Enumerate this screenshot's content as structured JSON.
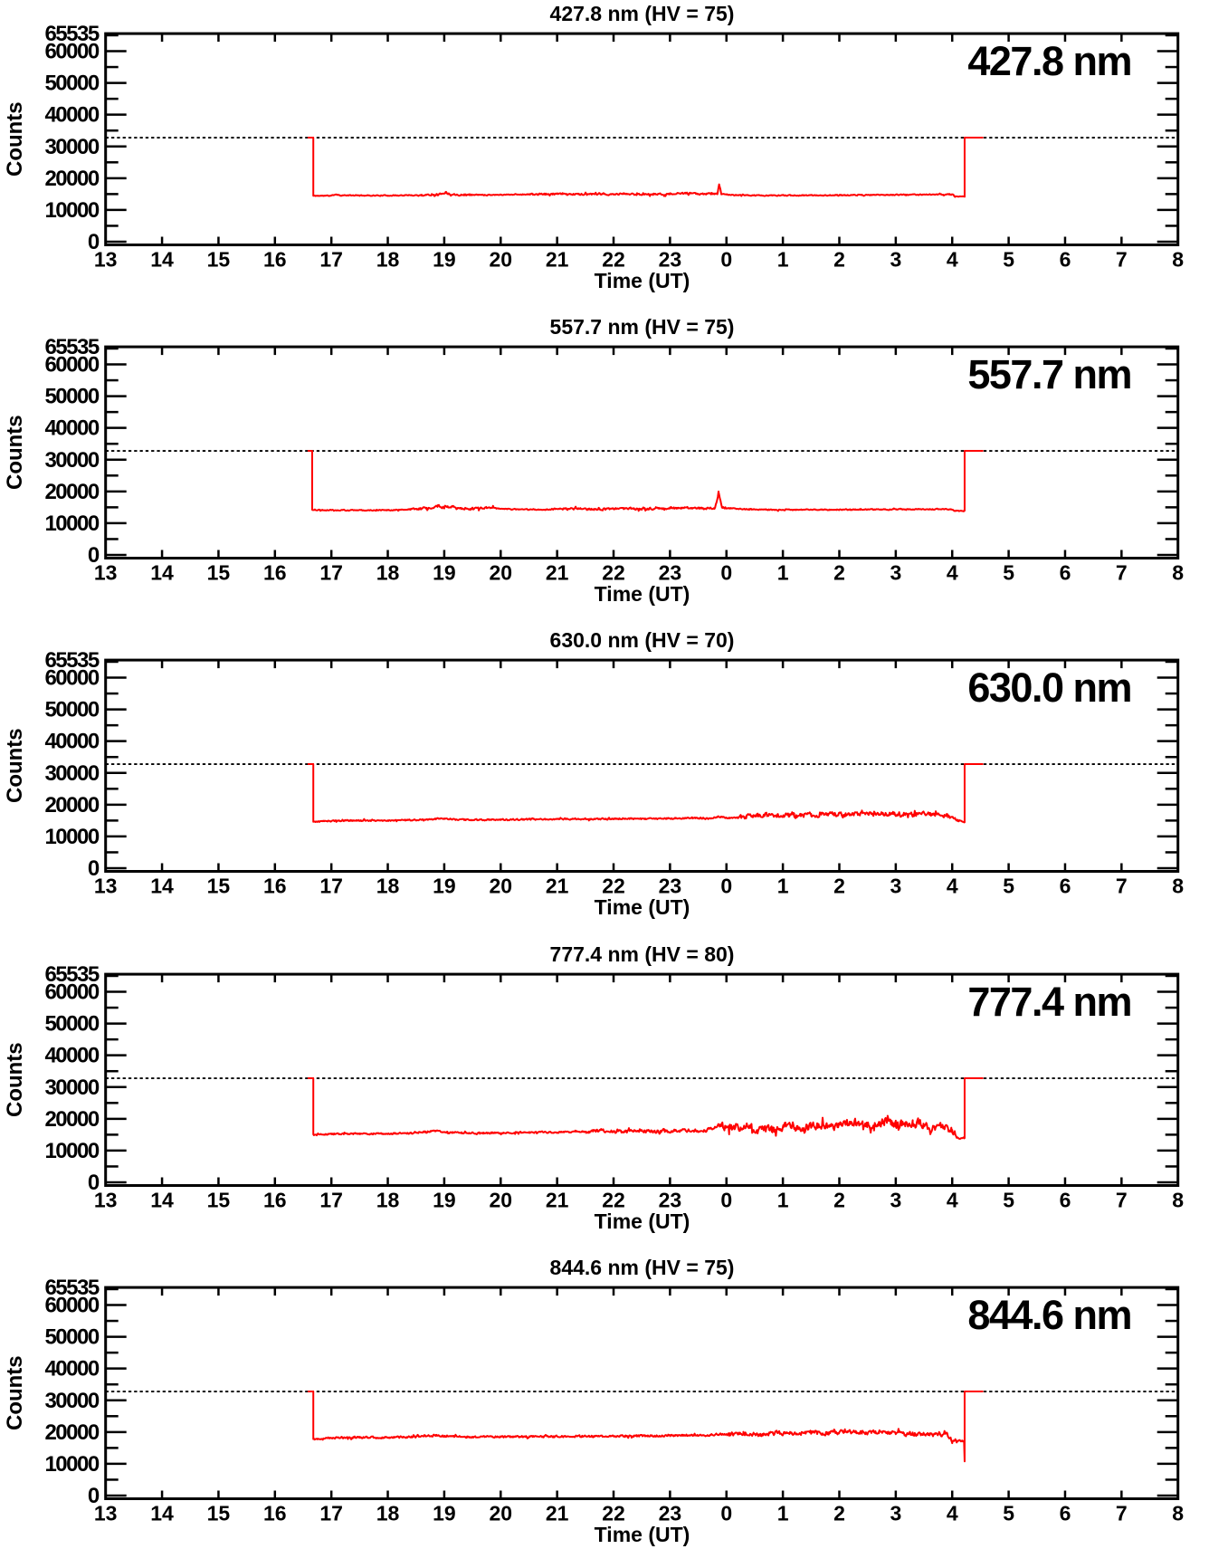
{
  "accent_color": "#ff0000",
  "axis_color": "#000000",
  "ylabel": "Counts",
  "xlabel": "Time (UT)",
  "x_tick_labels": [
    "13",
    "14",
    "15",
    "16",
    "17",
    "18",
    "19",
    "20",
    "21",
    "22",
    "23",
    "0",
    "1",
    "2",
    "3",
    "4",
    "5",
    "6",
    "7",
    "8"
  ],
  "y_tick_labels": [
    "0",
    "10000",
    "20000",
    "30000",
    "40000",
    "50000",
    "60000"
  ],
  "y_max_label": "65535",
  "chart_data": [
    {
      "type": "line",
      "title": "427.8 nm (HV = 75)",
      "label": "427.8 nm",
      "hv": 75,
      "xlim": [
        13,
        32
      ],
      "ylim": [
        0,
        65535
      ],
      "shutter_level": 32768,
      "trace_start": 16.58,
      "open_time": 16.68,
      "close_time": 28.22,
      "trace_end": 28.55,
      "noise_sigma": 120,
      "noise_regions": [
        [
          18.5,
          19.5,
          250
        ],
        [
          20.5,
          23.85,
          230
        ],
        [
          23.95,
          28.05,
          130
        ]
      ],
      "seed": 11,
      "envelope": [
        [
          16.68,
          14450
        ],
        [
          17.0,
          14500
        ],
        [
          17.08,
          14950
        ],
        [
          17.15,
          14600
        ],
        [
          17.5,
          14550
        ],
        [
          18.0,
          14550
        ],
        [
          18.6,
          14650
        ],
        [
          18.95,
          15050
        ],
        [
          19.02,
          15550
        ],
        [
          19.1,
          15000
        ],
        [
          19.3,
          14800
        ],
        [
          19.6,
          14750
        ],
        [
          20.0,
          14800
        ],
        [
          20.4,
          14900
        ],
        [
          20.8,
          14950
        ],
        [
          21.1,
          15050
        ],
        [
          21.4,
          14950
        ],
        [
          21.7,
          14900
        ],
        [
          22.0,
          14850
        ],
        [
          22.15,
          15100
        ],
        [
          22.4,
          14900
        ],
        [
          22.7,
          14950
        ],
        [
          23.0,
          15000
        ],
        [
          23.3,
          15250
        ],
        [
          23.5,
          15050
        ],
        [
          23.7,
          15050
        ],
        [
          23.84,
          15100
        ],
        [
          23.87,
          18200
        ],
        [
          23.91,
          15000
        ],
        [
          24.1,
          14700
        ],
        [
          24.4,
          14600
        ],
        [
          24.8,
          14550
        ],
        [
          25.2,
          14600
        ],
        [
          25.6,
          14600
        ],
        [
          26.0,
          14650
        ],
        [
          26.4,
          14700
        ],
        [
          26.8,
          14750
        ],
        [
          27.2,
          14800
        ],
        [
          27.6,
          14850
        ],
        [
          27.95,
          14900
        ],
        [
          28.02,
          14850
        ],
        [
          28.05,
          14250
        ],
        [
          28.22,
          14250
        ]
      ]
    },
    {
      "type": "line",
      "title": "557.7 nm (HV = 75)",
      "label": "557.7 nm",
      "hv": 75,
      "xlim": [
        13,
        32
      ],
      "ylim": [
        0,
        65535
      ],
      "shutter_level": 32768,
      "trace_start": 16.58,
      "open_time": 16.66,
      "close_time": 28.22,
      "trace_end": 28.55,
      "noise_sigma": 140,
      "noise_regions": [
        [
          18.4,
          19.9,
          330
        ],
        [
          20.9,
          24.0,
          280
        ]
      ],
      "seed": 22,
      "envelope": [
        [
          16.66,
          14200
        ],
        [
          17.0,
          14150
        ],
        [
          17.4,
          14050
        ],
        [
          17.8,
          14100
        ],
        [
          18.2,
          14200
        ],
        [
          18.5,
          14400
        ],
        [
          18.75,
          14900
        ],
        [
          18.88,
          15350
        ],
        [
          19.0,
          15000
        ],
        [
          19.15,
          15300
        ],
        [
          19.3,
          14750
        ],
        [
          19.5,
          14500
        ],
        [
          19.75,
          14850
        ],
        [
          19.95,
          14600
        ],
        [
          20.2,
          14400
        ],
        [
          20.5,
          14300
        ],
        [
          20.8,
          14300
        ],
        [
          21.1,
          14450
        ],
        [
          21.4,
          14550
        ],
        [
          21.7,
          14400
        ],
        [
          22.0,
          14450
        ],
        [
          22.25,
          14650
        ],
        [
          22.5,
          14500
        ],
        [
          22.75,
          14600
        ],
        [
          23.0,
          14700
        ],
        [
          23.2,
          14850
        ],
        [
          23.4,
          14700
        ],
        [
          23.6,
          14700
        ],
        [
          23.8,
          14800
        ],
        [
          23.86,
          19500
        ],
        [
          23.92,
          15000
        ],
        [
          24.1,
          14600
        ],
        [
          24.4,
          14350
        ],
        [
          24.7,
          14250
        ],
        [
          25.0,
          14200
        ],
        [
          25.4,
          14250
        ],
        [
          25.8,
          14250
        ],
        [
          26.2,
          14300
        ],
        [
          26.6,
          14300
        ],
        [
          27.0,
          14350
        ],
        [
          27.4,
          14400
        ],
        [
          27.8,
          14400
        ],
        [
          28.0,
          14350
        ],
        [
          28.06,
          13850
        ],
        [
          28.22,
          13850
        ]
      ]
    },
    {
      "type": "line",
      "title": "630.0 nm (HV = 70)",
      "label": "630.0 nm",
      "hv": 70,
      "xlim": [
        13,
        32
      ],
      "ylim": [
        0,
        65535
      ],
      "shutter_level": 32768,
      "trace_start": 16.58,
      "open_time": 16.68,
      "close_time": 28.22,
      "trace_end": 28.55,
      "noise_sigma": 200,
      "noise_regions": [
        [
          24.2,
          28.0,
          620
        ]
      ],
      "seed": 33,
      "envelope": [
        [
          16.68,
          14600
        ],
        [
          17.0,
          14900
        ],
        [
          17.4,
          15000
        ],
        [
          17.9,
          15000
        ],
        [
          18.4,
          15100
        ],
        [
          18.8,
          15450
        ],
        [
          19.0,
          15550
        ],
        [
          19.2,
          15250
        ],
        [
          19.6,
          15200
        ],
        [
          20.0,
          15300
        ],
        [
          20.5,
          15350
        ],
        [
          21.0,
          15400
        ],
        [
          21.5,
          15500
        ],
        [
          21.9,
          15450
        ],
        [
          22.2,
          15650
        ],
        [
          22.5,
          15500
        ],
        [
          22.8,
          15600
        ],
        [
          23.1,
          15700
        ],
        [
          23.4,
          15800
        ],
        [
          23.7,
          15600
        ],
        [
          23.86,
          16300
        ],
        [
          24.0,
          15800
        ],
        [
          24.3,
          16200
        ],
        [
          24.6,
          16800
        ],
        [
          24.9,
          16600
        ],
        [
          25.2,
          16500
        ],
        [
          25.5,
          16800
        ],
        [
          25.8,
          17000
        ],
        [
          26.1,
          16800
        ],
        [
          26.4,
          17100
        ],
        [
          26.7,
          17100
        ],
        [
          27.0,
          17200
        ],
        [
          27.3,
          16900
        ],
        [
          27.6,
          17000
        ],
        [
          27.9,
          16400
        ],
        [
          28.05,
          15600
        ],
        [
          28.1,
          14800
        ],
        [
          28.22,
          14500
        ]
      ]
    },
    {
      "type": "line",
      "title": "777.4 nm (HV = 80)",
      "label": "777.4 nm",
      "hv": 80,
      "xlim": [
        13,
        32
      ],
      "ylim": [
        0,
        65535
      ],
      "shutter_level": 32768,
      "trace_start": 16.58,
      "open_time": 16.68,
      "close_time": 28.22,
      "trace_end": 28.55,
      "noise_sigma": 220,
      "noise_regions": [
        [
          21.5,
          23.9,
          460
        ],
        [
          23.9,
          28.05,
          1150
        ]
      ],
      "seed": 44,
      "envelope": [
        [
          16.68,
          14950
        ],
        [
          17.0,
          15200
        ],
        [
          17.4,
          15300
        ],
        [
          17.9,
          15300
        ],
        [
          18.4,
          15450
        ],
        [
          18.85,
          16250
        ],
        [
          19.05,
          15800
        ],
        [
          19.3,
          15550
        ],
        [
          19.7,
          15500
        ],
        [
          20.1,
          15600
        ],
        [
          20.5,
          15700
        ],
        [
          21.0,
          15800
        ],
        [
          21.4,
          15900
        ],
        [
          21.8,
          16300
        ],
        [
          22.1,
          15900
        ],
        [
          22.4,
          16100
        ],
        [
          22.7,
          16000
        ],
        [
          23.0,
          16100
        ],
        [
          23.3,
          16300
        ],
        [
          23.6,
          16200
        ],
        [
          23.86,
          17900
        ],
        [
          24.05,
          17300
        ],
        [
          24.3,
          17500
        ],
        [
          24.55,
          16600
        ],
        [
          24.8,
          16700
        ],
        [
          25.1,
          17800
        ],
        [
          25.35,
          17300
        ],
        [
          25.6,
          18000
        ],
        [
          25.9,
          17600
        ],
        [
          26.2,
          18600
        ],
        [
          26.5,
          17900
        ],
        [
          26.8,
          18800
        ],
        [
          27.0,
          18200
        ],
        [
          27.3,
          18600
        ],
        [
          27.55,
          17900
        ],
        [
          27.8,
          17300
        ],
        [
          28.0,
          16700
        ],
        [
          28.08,
          13950
        ],
        [
          28.22,
          13950
        ]
      ]
    },
    {
      "type": "line",
      "title": "844.6 nm (HV = 75)",
      "label": "844.6 nm",
      "hv": 75,
      "xlim": [
        13,
        32
      ],
      "ylim": [
        0,
        65535
      ],
      "shutter_level": 32768,
      "trace_start": 16.58,
      "open_time": 16.68,
      "close_time": 28.22,
      "trace_end": 28.55,
      "noise_sigma": 260,
      "noise_regions": [
        [
          24.0,
          28.0,
          580
        ]
      ],
      "seed": 55,
      "envelope": [
        [
          16.68,
          17800
        ],
        [
          17.0,
          18200
        ],
        [
          17.4,
          18300
        ],
        [
          17.9,
          18300
        ],
        [
          18.4,
          18450
        ],
        [
          18.85,
          18950
        ],
        [
          19.05,
          18650
        ],
        [
          19.4,
          18450
        ],
        [
          19.8,
          18500
        ],
        [
          20.2,
          18500
        ],
        [
          20.6,
          18550
        ],
        [
          21.0,
          18600
        ],
        [
          21.4,
          18700
        ],
        [
          21.8,
          18600
        ],
        [
          22.2,
          18750
        ],
        [
          22.6,
          18800
        ],
        [
          23.0,
          18850
        ],
        [
          23.3,
          19000
        ],
        [
          23.6,
          18900
        ],
        [
          23.86,
          19400
        ],
        [
          24.05,
          19200
        ],
        [
          24.3,
          19500
        ],
        [
          24.6,
          19300
        ],
        [
          24.9,
          19750
        ],
        [
          25.2,
          19500
        ],
        [
          25.5,
          19950
        ],
        [
          25.8,
          19650
        ],
        [
          26.1,
          20150
        ],
        [
          26.4,
          19800
        ],
        [
          26.7,
          20000
        ],
        [
          27.0,
          19700
        ],
        [
          27.3,
          19400
        ],
        [
          27.6,
          19300
        ],
        [
          27.9,
          19250
        ],
        [
          28.0,
          17250
        ],
        [
          28.1,
          17150
        ],
        [
          28.21,
          17100
        ],
        [
          28.22,
          10500
        ]
      ]
    }
  ]
}
